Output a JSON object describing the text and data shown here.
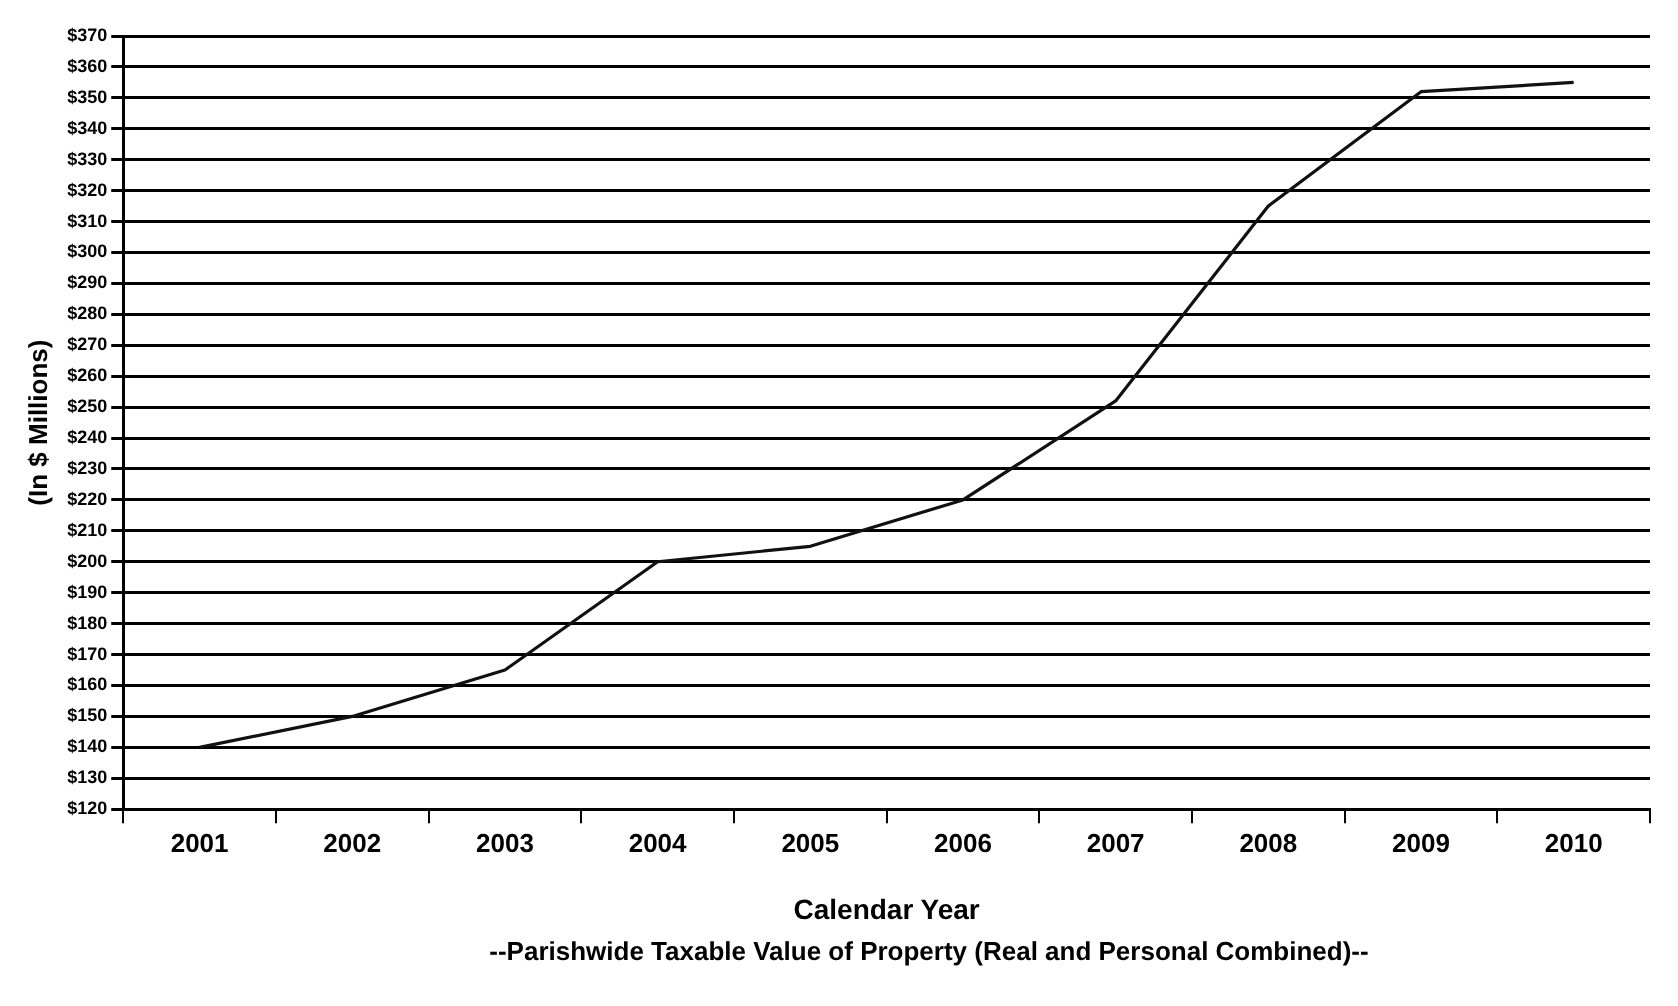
{
  "chart_data": {
    "type": "line",
    "xlabel": "Calendar Year",
    "ylabel": "(In $ Millions)",
    "annotations": [
      "--Parishwide Taxable Value of Property (Real and Personal Combined)--"
    ],
    "categories": [
      "2001",
      "2002",
      "2003",
      "2004",
      "2005",
      "2006",
      "2007",
      "2008",
      "2009",
      "2010"
    ],
    "series": [
      {
        "color": "#111111",
        "values": [
          140,
          150,
          165,
          200,
          205,
          220,
          252,
          315,
          352,
          355
        ]
      }
    ],
    "ylim": [
      120,
      370
    ],
    "yticks": [
      {
        "value": 120,
        "label": "$120"
      },
      {
        "value": 130,
        "label": "$130"
      },
      {
        "value": 140,
        "label": "$140"
      },
      {
        "value": 150,
        "label": "$150"
      },
      {
        "value": 160,
        "label": "$160"
      },
      {
        "value": 170,
        "label": "$170"
      },
      {
        "value": 180,
        "label": "$180"
      },
      {
        "value": 190,
        "label": "$190"
      },
      {
        "value": 200,
        "label": "$200"
      },
      {
        "value": 210,
        "label": "$210"
      },
      {
        "value": 220,
        "label": "$220"
      },
      {
        "value": 230,
        "label": "$230"
      },
      {
        "value": 240,
        "label": "$240"
      },
      {
        "value": 250,
        "label": "$250"
      },
      {
        "value": 260,
        "label": "$260"
      },
      {
        "value": 270,
        "label": "$270"
      },
      {
        "value": 280,
        "label": "$280"
      },
      {
        "value": 290,
        "label": "$290"
      },
      {
        "value": 300,
        "label": "$300"
      },
      {
        "value": 310,
        "label": "$310"
      },
      {
        "value": 320,
        "label": "$320"
      },
      {
        "value": 330,
        "label": "$330"
      },
      {
        "value": 340,
        "label": "$340"
      },
      {
        "value": 350,
        "label": "$350"
      },
      {
        "value": 360,
        "label": "$360"
      },
      {
        "value": 370,
        "label": "$370"
      }
    ],
    "grid": "y",
    "marker": "none",
    "line_style": "solid",
    "legend": false
  }
}
